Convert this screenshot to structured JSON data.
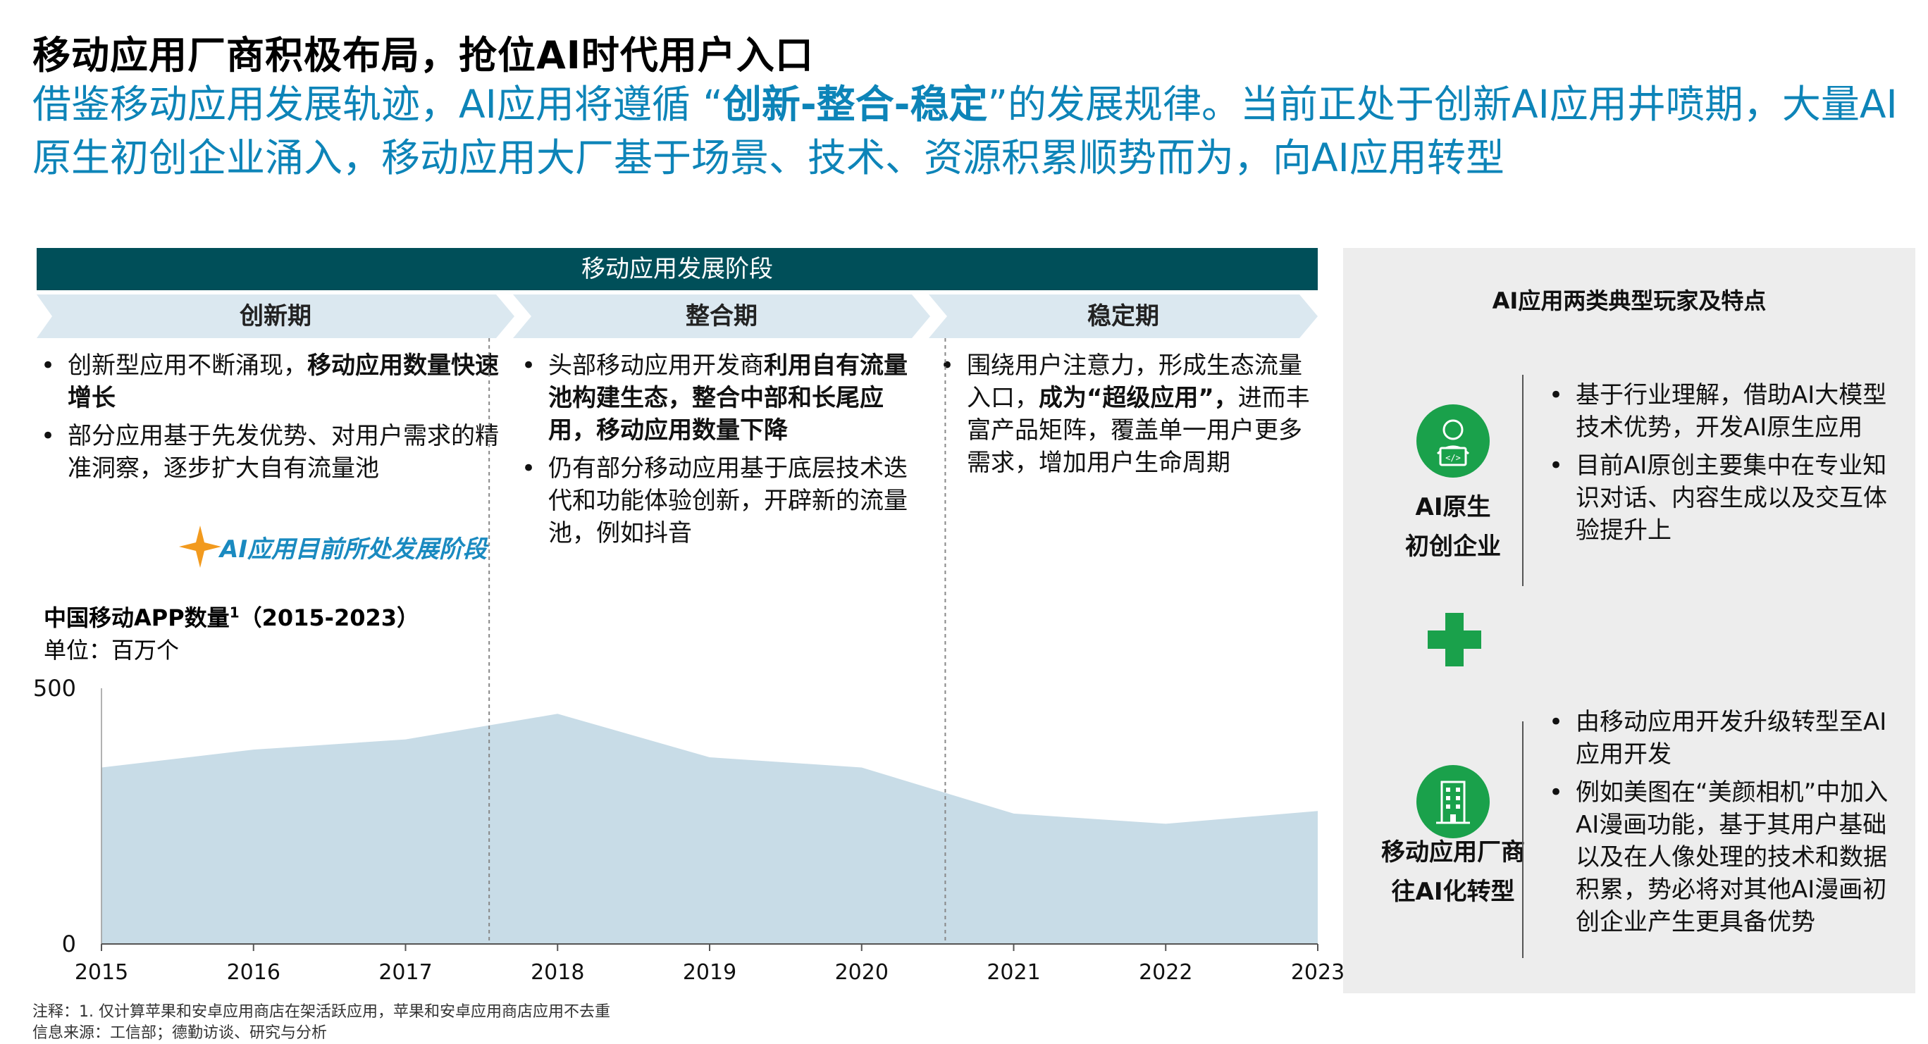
{
  "header": {
    "title": "移动应用厂商积极布局，抢位AI时代用户入口",
    "subtitle_part1": "借鉴移动应用发展轨迹，AI应用将遵循  “",
    "subtitle_emphasis": "创新-整合-稳定",
    "subtitle_part2": "”的发展规律。当前正处于创新AI应用井喷期，大量AI原生初创企业涌入，移动应用大厂基于场景、技术、资源积累顺势而为，向AI应用转型"
  },
  "stages": {
    "title": "移动应用发展阶段",
    "phases": [
      {
        "label": "创新期",
        "bullets": [
          {
            "normal": "创新型应用不断涌现，",
            "bold": "移动应用数量快速增长",
            "tail": ""
          },
          {
            "normal": "部分应用基于先发优势、对用户需求的精准洞察，逐步扩大自有流量池",
            "bold": "",
            "tail": ""
          }
        ]
      },
      {
        "label": "整合期",
        "bullets": [
          {
            "normal": "头部移动应用开发商",
            "bold": "利用自有流量池构建生态，整合中部和长尾应用，移动应用数量下降",
            "tail": ""
          },
          {
            "normal": "仍有部分移动应用基于底层技术迭代和功能体验创新，开辟新的流量池，例如抖音",
            "bold": "",
            "tail": ""
          }
        ]
      },
      {
        "label": "稳定期",
        "bullets": [
          {
            "normal": "围绕用户注意力，形成生态流量入口，",
            "bold": "成为“超级应用”，",
            "tail": "进而丰富产品矩阵，覆盖单一用户更多需求，增加用户生命周期"
          }
        ]
      }
    ],
    "current_stage_note": "AI应用目前所处发展阶段"
  },
  "chart_data": {
    "type": "area",
    "title": "中国移动APP数量",
    "title_sup": "1",
    "title_range": "（2015-2023）",
    "unit": "单位：百万个",
    "x": [
      "2015",
      "2016",
      "2017",
      "2018",
      "2019",
      "2020",
      "2021",
      "2022",
      "2023"
    ],
    "values": [
      345,
      380,
      400,
      450,
      365,
      345,
      255,
      235,
      260
    ],
    "ylim": [
      0,
      500
    ],
    "yticks": [
      "0",
      "500"
    ],
    "phase_dividers_between": [
      [
        "2017",
        "2018"
      ],
      [
        "2020",
        "2021"
      ]
    ],
    "color": "#c8dce7"
  },
  "notes": {
    "footnote": "注释：1. 仅计算苹果和安卓应用商店在架活跃应用，苹果和安卓应用商店应用不去重",
    "source": "信息来源：工信部；德勤访谈、研究与分析"
  },
  "players": {
    "title": "AI应用两类典型玩家及特点",
    "items": [
      {
        "name_line1": "AI原生",
        "name_line2": "初创企业",
        "icon": "developer-icon",
        "bullets": [
          "基于行业理解，借助AI大模型技术优势，开发AI原生应用",
          "目前AI原创主要集中在专业知识对话、内容生成以及交互体验提升上"
        ]
      },
      {
        "name_line1": "移动应用厂商",
        "name_line2": "往AI化转型",
        "icon": "building-icon",
        "bullets": [
          "由移动应用开发升级转型至AI应用开发",
          "例如美图在“美颜相机”中加入AI漫画功能，基于其用户基础以及在人像处理的技术和数据积累，势必将对其他AI漫画初创企业产生更具备优势"
        ]
      }
    ],
    "plus_icon": "plus-icon"
  },
  "colors": {
    "accent_blue": "#0d84b8",
    "dark_teal": "#004f59",
    "chevron": "#dbe8f0",
    "green": "#1aa14b",
    "star": "#f29a1e"
  }
}
